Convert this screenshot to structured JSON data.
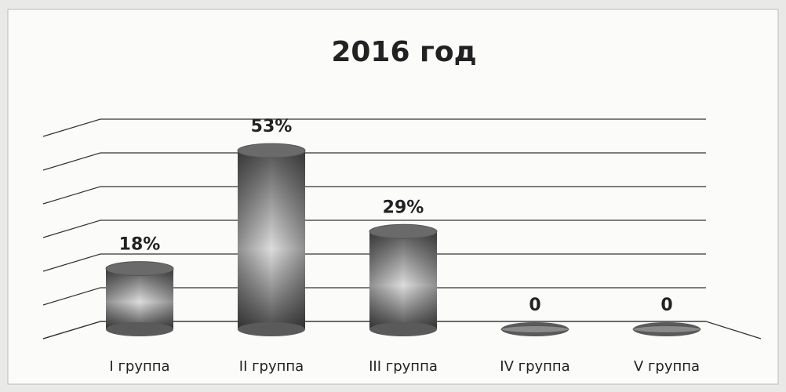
{
  "chart_data": {
    "type": "bar",
    "title": "2016 год",
    "categories": [
      "I группа",
      "II группа",
      "III группа",
      "IV группа",
      "V группа"
    ],
    "values": [
      18,
      53,
      29,
      0,
      0
    ],
    "value_labels": [
      "18%",
      "53%",
      "29%",
      "0",
      "0"
    ],
    "color": "#6e6e6e",
    "ylim": [
      0,
      60
    ],
    "yticks": [
      0,
      10,
      20,
      30,
      40,
      50,
      60
    ],
    "grid": true
  }
}
